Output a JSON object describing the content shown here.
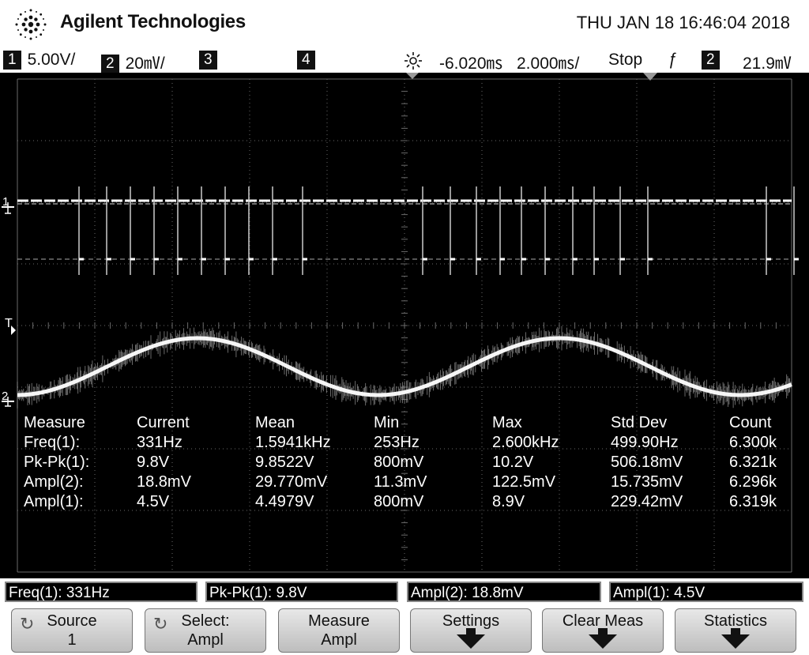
{
  "header": {
    "brand": "Agilent Technologies",
    "datetime": "THU JAN 18 16:46:04 2018"
  },
  "status": {
    "ch1_num": "1",
    "ch1_scale": "5.00V/",
    "ch2_num": "2",
    "ch2_scale": "20㎷/",
    "ch3_num": "3",
    "ch4_num": "4",
    "delay": "-6.020㎳",
    "timebase": "2.000㎳/",
    "run_state": "Stop",
    "trigger_slope": "ƒ",
    "trigger_source": "2",
    "trigger_level": "21.9㎷"
  },
  "markers": {
    "ch1": "1",
    "trigger": "T",
    "ch2": "2"
  },
  "measurements": {
    "headers": [
      "Measure",
      "Current",
      "Mean",
      "Min",
      "Max",
      "Std Dev",
      "Count"
    ],
    "rows": [
      [
        "Freq(1):",
        "331Hz",
        "1.5941kHz",
        "253Hz",
        "2.600kHz",
        "499.90Hz",
        "6.300k"
      ],
      [
        "Pk-Pk(1):",
        "9.8V",
        "9.8522V",
        "800mV",
        "10.2V",
        "506.18mV",
        "6.321k"
      ],
      [
        "Ampl(2):",
        "18.8mV",
        "29.770mV",
        "11.3mV",
        "122.5mV",
        "15.735mV",
        "6.296k"
      ],
      [
        "Ampl(1):",
        "4.5V",
        "4.4979V",
        "800mV",
        "8.9V",
        "229.42mV",
        "6.319k"
      ]
    ]
  },
  "readouts": [
    "Freq(1): 331Hz",
    "Pk-Pk(1): 9.8V",
    "Ampl(2): 18.8mV",
    "Ampl(1): 4.5V"
  ],
  "softkeys": {
    "source_l1": "Source",
    "source_l2": "1",
    "select_l1": "Select:",
    "select_l2": "Ampl",
    "measure_l1": "Measure",
    "measure_l2": "Ampl",
    "settings": "Settings",
    "clear_meas": "Clear Meas",
    "statistics": "Statistics"
  },
  "icons": {
    "logo": "agilent-spark-icon",
    "delay": "delay-sun-icon",
    "rotate": "rotate-knob-icon",
    "down_arrow": "submenu-arrow-icon"
  },
  "colors": {
    "screen_bg": "#000000",
    "trace": "#ffffff",
    "grid": "#6a6a6a"
  }
}
